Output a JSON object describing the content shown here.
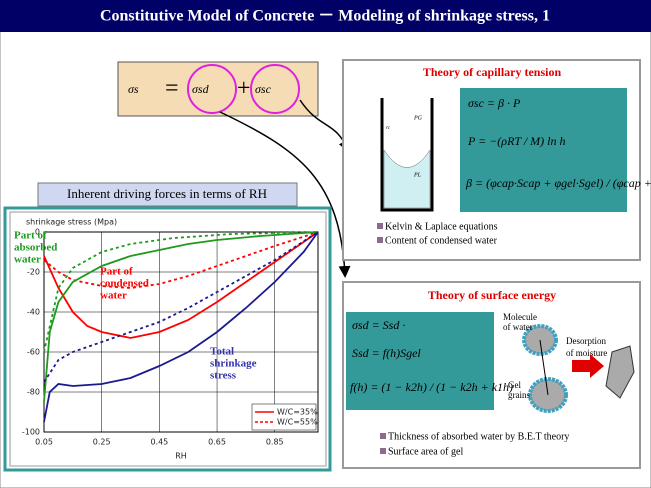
{
  "header": {
    "title": "Constitutive Model of Concrete － Modeling of shrinkage stress, 1"
  },
  "main_equation": {
    "lhs": "σs",
    "equals": "=",
    "term1": "σsd",
    "plus": "+",
    "term2": "σsc"
  },
  "driving_forces_label": "Inherent driving forces in terms of RH",
  "chart_data": {
    "type": "line",
    "ylabel": "shrinkage stress (Mpa)",
    "xlabel": "RH",
    "xlim": [
      0.05,
      1.0
    ],
    "ylim": [
      -100,
      0
    ],
    "xticks": [
      0.05,
      0.25,
      0.45,
      0.65,
      0.85
    ],
    "yticks": [
      0,
      -20,
      -40,
      -60,
      -80,
      -100
    ],
    "grid": true,
    "legend": "lower-right",
    "series": [
      {
        "name": "W/C=35%",
        "color": "#ff0000",
        "dashed": false,
        "x": [
          0.05,
          0.1,
          0.15,
          0.2,
          0.25,
          0.35,
          0.45,
          0.55,
          0.65,
          0.75,
          0.85,
          0.95,
          1.0
        ],
        "values": [
          -12,
          -28,
          -40,
          -47,
          -50,
          -53,
          -50,
          -44,
          -35,
          -25,
          -15,
          -5,
          0
        ]
      },
      {
        "name": "W/C=55%",
        "color": "#ff0000",
        "dashed": true,
        "x": [
          0.05,
          0.1,
          0.15,
          0.25,
          0.35,
          0.45,
          0.55,
          0.65,
          0.75,
          0.85,
          1.0
        ],
        "values": [
          -14,
          -20,
          -24,
          -27,
          -28,
          -26,
          -22,
          -17,
          -12,
          -7,
          0
        ]
      },
      {
        "color": "#1e9a1e",
        "dashed": false,
        "x": [
          0.05,
          0.07,
          0.1,
          0.15,
          0.25,
          0.35,
          0.45,
          0.55,
          0.65,
          0.8,
          1.0
        ],
        "values": [
          -85,
          -50,
          -35,
          -25,
          -17,
          -12,
          -9,
          -6,
          -4,
          -2,
          0
        ]
      },
      {
        "color": "#1e9a1e",
        "dashed": true,
        "x": [
          0.05,
          0.1,
          0.15,
          0.25,
          0.35,
          0.5,
          0.7,
          1.0
        ],
        "values": [
          -60,
          -28,
          -18,
          -10,
          -6,
          -3,
          -1,
          0
        ]
      },
      {
        "color": "#1a1a8c",
        "dashed": false,
        "x": [
          0.05,
          0.07,
          0.1,
          0.15,
          0.25,
          0.35,
          0.45,
          0.55,
          0.65,
          0.75,
          0.85,
          0.95,
          1.0
        ],
        "values": [
          -95,
          -80,
          -76,
          -77,
          -76,
          -73,
          -67,
          -60,
          -50,
          -38,
          -25,
          -10,
          0
        ]
      },
      {
        "color": "#1a1a8c",
        "dashed": true,
        "x": [
          0.05,
          0.1,
          0.15,
          0.25,
          0.35,
          0.45,
          0.55,
          0.65,
          0.75,
          0.85,
          1.0
        ],
        "values": [
          -75,
          -64,
          -60,
          -55,
          -50,
          -45,
          -38,
          -30,
          -22,
          -14,
          0
        ]
      }
    ],
    "annotations": [
      {
        "lines": [
          "Part of",
          "absorbed",
          "water"
        ],
        "color": "#1e9a1e"
      },
      {
        "lines": [
          "Part of",
          "condensed",
          "water"
        ],
        "color": "#ff0000"
      },
      {
        "lines": [
          "Total",
          "shrinkage",
          "stress"
        ],
        "color": "#3333aa"
      }
    ]
  },
  "capillary_panel": {
    "title": "Theory of capillary tension",
    "diagram": {
      "gas": "PG",
      "liquid": "PL",
      "radius": "rc"
    },
    "equations": [
      "σsc = β · P",
      "P = −(ρRT / M) ln h",
      "β = (φcap·Scap + φgel·Sgel) / (φcap + φgel)"
    ],
    "bullets": [
      "Kelvin & Laplace equations",
      "Content of condensed water"
    ]
  },
  "surface_panel": {
    "title": "Theory of surface energy",
    "equations": [
      "σsd = Ssd ·",
      "Ssd = f(h)Sgel",
      "f(h) = (1 − k2h) / (1 − k2h + k1h)"
    ],
    "diagram": {
      "molecule": [
        "Molecule",
        "of water"
      ],
      "desorption": [
        "Desorption",
        "of moisture"
      ],
      "gel": [
        "Gel",
        "grains"
      ]
    },
    "bullets": [
      "Thickness of absorbed water by B.E.T theory",
      "Surface area of gel"
    ]
  }
}
